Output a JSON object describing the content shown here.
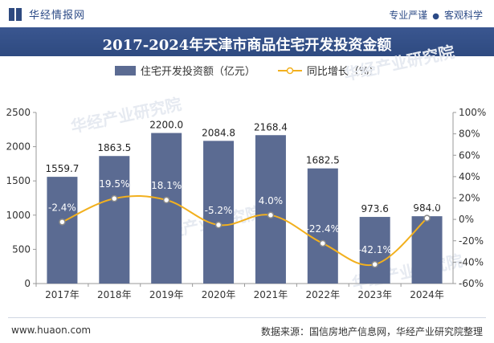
{
  "header": {
    "brand": "华经情报网",
    "tagline_left": "专业严谨",
    "tagline_right": "客观科学"
  },
  "chart_data": {
    "type": "bar",
    "title": "2017-2024年天津市商品住宅开发投资金额",
    "categories": [
      "2017年",
      "2018年",
      "2019年",
      "2020年",
      "2021年",
      "2022年",
      "2023年",
      "2024年"
    ],
    "series": [
      {
        "name": "住宅开发投资额（亿元）",
        "type": "bar",
        "axis": "left",
        "values": [
          1559.7,
          1863.5,
          2200.0,
          2084.8,
          2168.4,
          1682.5,
          973.6,
          984.0
        ],
        "labels": [
          "1559.7",
          "1863.5",
          "2200.0",
          "2084.8",
          "2168.4",
          "1682.5",
          "973.6",
          "984.0"
        ],
        "color": "#5b6b92"
      },
      {
        "name": "同比增长（%）",
        "type": "line",
        "axis": "right",
        "values": [
          -2.4,
          19.5,
          18.1,
          -5.2,
          4.0,
          -22.4,
          -42.1,
          1.1
        ],
        "labels": [
          "-2.4%",
          "19.5%",
          "18.1%",
          "-5.2%",
          "4.0%",
          "-22.4%",
          "-42.1%",
          "1.1%"
        ],
        "color": "#f2b01e"
      }
    ],
    "y_left": {
      "min": 0,
      "max": 2500,
      "ticks": [
        "0",
        "500",
        "1000",
        "1500",
        "2000",
        "2500"
      ]
    },
    "y_right": {
      "min": -60,
      "max": 100,
      "ticks": [
        "-60%",
        "-40%",
        "-20%",
        "0%",
        "20%",
        "40%",
        "60%",
        "80%",
        "100%"
      ]
    },
    "grid": false,
    "legend": "top"
  },
  "watermark": "华经产业研究院",
  "footer": {
    "site": "www.huaon.com",
    "source": "数据来源：国信房地产信息网，华经产业研究院整理"
  },
  "colors": {
    "header": "#2e4a80",
    "bar": "#5b6b92",
    "line": "#f2b01e"
  }
}
